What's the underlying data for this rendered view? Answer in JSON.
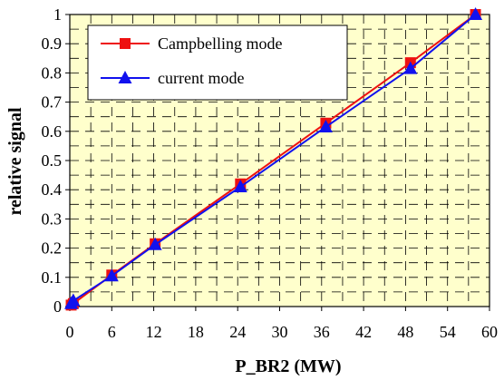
{
  "chart_data": {
    "type": "line",
    "title": "",
    "xlabel": "P_BR2 (MW)",
    "ylabel": "relative signal",
    "xlim": [
      0,
      60
    ],
    "ylim": [
      0,
      1
    ],
    "xticks": [
      "0",
      "6",
      "12",
      "18",
      "24",
      "30",
      "36",
      "42",
      "48",
      "54",
      "60"
    ],
    "yticks": [
      "0",
      "0.1",
      "0.2",
      "0.3",
      "0.4",
      "0.5",
      "0.6",
      "0.7",
      "0.8",
      "0.9",
      "1"
    ],
    "grid": true,
    "legend_position": "top-left",
    "plot_background": "#ffffcc",
    "series": [
      {
        "name": "Campbelling mode",
        "color": "#ee1111",
        "marker": "square",
        "x": [
          0.2,
          0.5,
          6,
          12.2,
          24.4,
          36.6,
          48.7,
          58
        ],
        "y": [
          0.005,
          0.01,
          0.108,
          0.215,
          0.42,
          0.628,
          0.835,
          1.0
        ]
      },
      {
        "name": "current mode",
        "color": "#1111ee",
        "marker": "triangle",
        "x": [
          0.2,
          0.5,
          6,
          12.2,
          24.4,
          36.6,
          48.7,
          58
        ],
        "y": [
          0.01,
          0.02,
          0.105,
          0.212,
          0.41,
          0.615,
          0.815,
          1.0
        ]
      }
    ]
  }
}
